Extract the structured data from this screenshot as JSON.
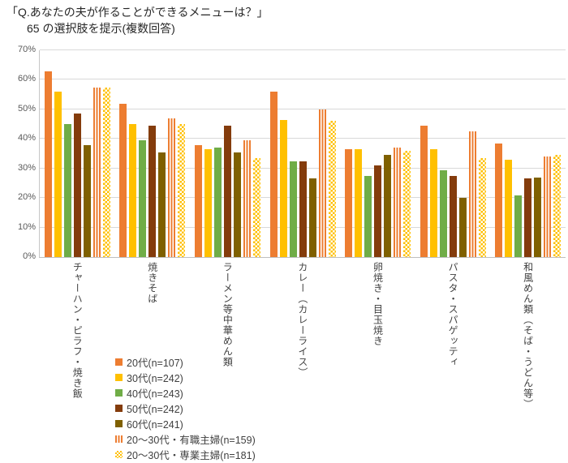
{
  "title": {
    "line1": "「Q.あなたの夫が作ることができるメニューは？」",
    "line2": "65 の選択肢を提示(複数回答)"
  },
  "chart_data": {
    "type": "bar",
    "title": "「Q.あなたの夫が作ることができるメニューは？」 65 の選択肢を提示(複数回答)",
    "categories": [
      "チャーハン・ピラフ・焼き飯",
      "焼きそば",
      "ラーメン等中華めん類",
      "カレー（カレーライス）",
      "卵焼き・目玉焼き",
      "パスタ・スパゲッティ",
      "和風めん類（そば・うどん等）"
    ],
    "series": [
      {
        "name": "20代(n=107)",
        "color": "#ED7D31",
        "pattern": "solid",
        "values": [
          63,
          52,
          38,
          56,
          36.5,
          44.5,
          38.5
        ]
      },
      {
        "name": "30代(n=242)",
        "color": "#FFC000",
        "pattern": "solid",
        "values": [
          56,
          45,
          36.5,
          46.5,
          36.5,
          36.5,
          33
        ]
      },
      {
        "name": "40代(n=243)",
        "color": "#70AD47",
        "pattern": "solid",
        "values": [
          45,
          39.5,
          37,
          32.5,
          27.5,
          29.5,
          21
        ]
      },
      {
        "name": "50代(n=242)",
        "color": "#843C0C",
        "pattern": "solid",
        "values": [
          48.5,
          44.5,
          44.5,
          32.5,
          31,
          27.5,
          26.5
        ]
      },
      {
        "name": "60代(n=241)",
        "color": "#7F6000",
        "pattern": "solid",
        "values": [
          38,
          35.5,
          35.5,
          26.5,
          34.5,
          20,
          27
        ]
      },
      {
        "name": "20～30代・有職主婦(n=159)",
        "color": "#ED7D31",
        "pattern": "vertical-stripes",
        "values": [
          57.5,
          47,
          39.5,
          50,
          37,
          42.5,
          34
        ]
      },
      {
        "name": "20～30代・専業主婦(n=181)",
        "color": "#FFC000",
        "pattern": "checker",
        "values": [
          57.5,
          45,
          33.5,
          46,
          36,
          33.5,
          34.5
        ]
      }
    ],
    "xlabel": "",
    "ylabel": "",
    "ylim": [
      0,
      70
    ],
    "yticks": [
      0,
      10,
      20,
      30,
      40,
      50,
      60,
      70
    ],
    "ytick_suffix": "%",
    "grid": true,
    "legend_position": "bottom-left",
    "axis_color": "#BFBFBF",
    "grid_color": "#D9D9D9",
    "tick_label_color": "#595959",
    "category_label_color": "#404040"
  }
}
